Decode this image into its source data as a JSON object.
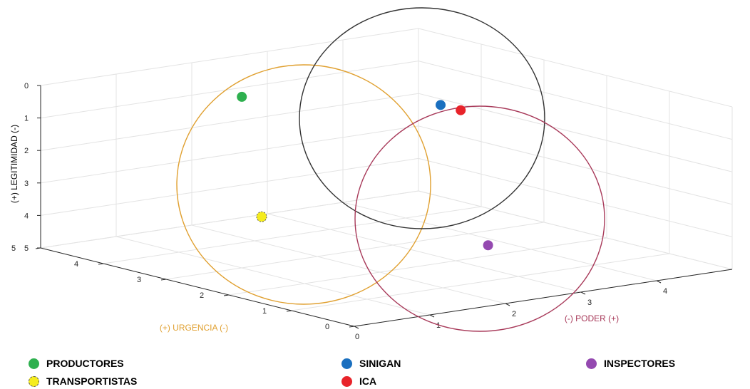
{
  "chart_data": {
    "type": "scatter",
    "projection": "3d",
    "axes": {
      "x": {
        "label": "(+) URGENCIA (-)",
        "range": [
          0,
          5
        ],
        "ticks": [
          "0",
          "1",
          "2",
          "3",
          "4",
          "5"
        ],
        "color": "#E0A030"
      },
      "y": {
        "label": "(-) PODER (+)",
        "range": [
          0,
          5
        ],
        "ticks": [
          "0",
          "1",
          "2",
          "3",
          "4"
        ],
        "color": "#A83A5A"
      },
      "z": {
        "label": "(+) LEGITIMIDAD (-)",
        "range": [
          0,
          5
        ],
        "ticks": [
          "0",
          "1",
          "2",
          "3",
          "4",
          "5"
        ],
        "reversed": true,
        "color": "#000000"
      }
    },
    "grid": true,
    "series": [
      {
        "name": "PRODUCTORES",
        "color": "#2EB04F",
        "x": 3.6,
        "y": 1.5,
        "z": 0.2
      },
      {
        "name": "TRANSPORTISTAS",
        "color": "#F5EC1E",
        "x": 2.2,
        "y": 0.6,
        "z": 2.9
      },
      {
        "name": "SINIGAN",
        "color": "#1A6FBF",
        "x": 2.6,
        "y": 3.3,
        "z": 0.6
      },
      {
        "name": "ICA",
        "color": "#E8232A",
        "x": 2.4,
        "y": 3.4,
        "z": 0.7
      },
      {
        "name": "INSPECTORES",
        "color": "#9449B0",
        "x": 1.0,
        "y": 2.6,
        "z": 3.9
      }
    ],
    "circles": [
      {
        "label": "URGENCIA",
        "color": "#E0A030"
      },
      {
        "label": "LEGITIMIDAD",
        "color": "#333333"
      },
      {
        "label": "PODER",
        "color": "#A83A5A"
      }
    ],
    "legend_placement": "bottom"
  }
}
